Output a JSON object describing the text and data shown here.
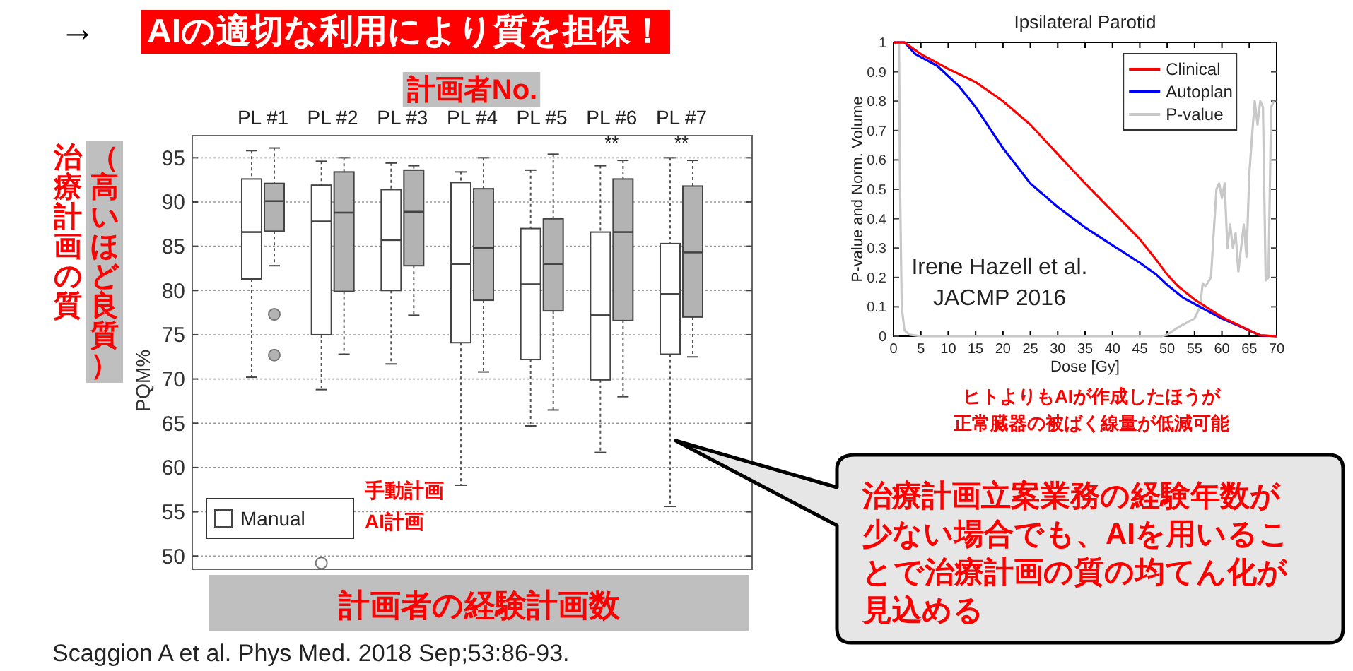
{
  "chart_data": [
    {
      "type": "box",
      "title": "AIの適切な利用により質を担保！",
      "categories": [
        "PL #1",
        "PL #2",
        "PL #3",
        "PL #4",
        "PL #5",
        "PL #6",
        "PL #7"
      ],
      "ylabel": "PQM%",
      "ylim": [
        48.5,
        97.5
      ],
      "yticks": [
        50,
        55,
        60,
        65,
        70,
        75,
        80,
        85,
        90,
        95
      ],
      "grid": "y",
      "legend": "bottom left",
      "series": [
        {
          "name": "Manual",
          "color": "#ffffff",
          "boxes": [
            {
              "low": 70.2,
              "q1": 81.3,
              "median": 86.6,
              "q3": 92.6,
              "high": 95.8
            },
            {
              "low": 68.8,
              "q1": 75.0,
              "median": 87.8,
              "q3": 91.9,
              "high": 94.6,
              "outliers": [
                49.2
              ]
            },
            {
              "low": 71.7,
              "q1": 80.0,
              "median": 85.7,
              "q3": 91.4,
              "high": 94.4
            },
            {
              "low": 58.0,
              "q1": 74.1,
              "median": 83.0,
              "q3": 92.2,
              "high": 93.4
            },
            {
              "low": 64.7,
              "q1": 72.2,
              "median": 80.7,
              "q3": 87.0,
              "high": 93.6
            },
            {
              "low": 61.7,
              "q1": 69.9,
              "median": 77.2,
              "q3": 86.6,
              "high": 94.1
            },
            {
              "low": 55.6,
              "q1": 72.8,
              "median": 79.6,
              "q3": 85.3,
              "high": 95.0
            }
          ]
        },
        {
          "color": "#b3b3b3",
          "boxes": [
            {
              "low": 82.8,
              "q1": 86.7,
              "median": 90.1,
              "q3": 92.1,
              "high": 96.1,
              "outliers": [
                77.3,
                72.7
              ]
            },
            {
              "low": 72.8,
              "q1": 79.9,
              "median": 88.8,
              "q3": 93.4,
              "high": 95.0
            },
            {
              "low": 77.2,
              "q1": 82.8,
              "median": 88.9,
              "q3": 93.6,
              "high": 94.1
            },
            {
              "low": 70.8,
              "q1": 78.9,
              "median": 84.8,
              "q3": 91.5,
              "high": 95.0
            },
            {
              "low": 66.5,
              "q1": 77.7,
              "median": 83.0,
              "q3": 88.1,
              "high": 95.4
            },
            {
              "low": 68.0,
              "q1": 76.6,
              "median": 86.6,
              "q3": 92.6,
              "high": 94.7
            },
            {
              "low": 72.5,
              "q1": 77.0,
              "median": 84.3,
              "q3": 91.8,
              "high": 94.7
            }
          ]
        }
      ],
      "annotations": [
        "→",
        "計画者No.",
        "治療計画の質",
        "（高いほど良質）",
        "**",
        "**",
        "手動計画",
        "AI計画",
        "計画者の経験計画数",
        "Scaggion A et  al. Phys Med. 2018 Sep;53:86-93.",
        "治療計画立案業務の経験年数が",
        "少ない場合でも、AIを用いるこ",
        "とで治療計画の質の均てん化が",
        "見込める"
      ]
    },
    {
      "type": "line",
      "title": "Ipsilateral Parotid",
      "xlabel": "Dose [Gy]",
      "ylabel": "P-value and Norm. Volume",
      "xlim": [
        0,
        70
      ],
      "xticks": [
        0,
        5,
        10,
        15,
        20,
        25,
        30,
        35,
        40,
        45,
        50,
        55,
        60,
        65,
        70
      ],
      "ylim": [
        0,
        1
      ],
      "yticks": [
        0,
        0.1,
        0.2,
        0.3,
        0.4,
        0.5,
        0.6,
        0.7,
        0.8,
        0.9,
        1
      ],
      "legend": "top",
      "series": [
        {
          "name": "Clinical",
          "color": "#ff0000",
          "x": [
            0,
            2,
            5,
            10,
            15,
            20,
            25,
            30,
            35,
            40,
            45,
            48,
            50,
            52,
            55,
            60,
            65,
            67,
            70
          ],
          "values": [
            1,
            1,
            0.96,
            0.91,
            0.865,
            0.8,
            0.72,
            0.62,
            0.52,
            0.425,
            0.33,
            0.26,
            0.21,
            0.17,
            0.125,
            0.065,
            0.02,
            0.003,
            0
          ]
        },
        {
          "name": "Autoplan",
          "color": "#0000ff",
          "x": [
            0,
            2,
            4,
            8,
            12,
            15,
            20,
            25,
            30,
            35,
            40,
            45,
            48,
            50,
            53,
            55,
            60,
            65,
            67,
            70
          ],
          "values": [
            1,
            1,
            0.96,
            0.92,
            0.85,
            0.78,
            0.64,
            0.52,
            0.44,
            0.37,
            0.31,
            0.25,
            0.21,
            0.175,
            0.13,
            0.11,
            0.06,
            0.02,
            0.003,
            0
          ]
        },
        {
          "name": "P-value",
          "color": "#c8c8c8",
          "x": [
            0,
            1,
            1.2,
            1.5,
            2,
            3,
            5,
            49,
            50,
            52,
            54,
            55,
            56,
            56.5,
            57,
            58,
            58.5,
            59,
            59.5,
            60,
            60.5,
            61,
            61.5,
            62,
            62.5,
            63,
            63.5,
            64,
            64.5,
            65,
            65.5,
            66,
            66.5,
            67,
            67.5,
            68,
            68.5,
            69,
            69.5
          ],
          "values": [
            1,
            1,
            0.5,
            0.1,
            0.02,
            0.005,
            0,
            0,
            0.005,
            0.03,
            0.05,
            0.06,
            0.1,
            0.18,
            0.17,
            0.2,
            0.35,
            0.5,
            0.52,
            0.47,
            0.52,
            0.3,
            0.38,
            0.3,
            0.35,
            0.22,
            0.3,
            0.38,
            0.27,
            0.55,
            0.68,
            0.8,
            0.72,
            0.8,
            0.78,
            0.19,
            0.2,
            0.78,
            0.8
          ]
        }
      ],
      "annotations": [
        "Irene Hazell et al.\nJACMP 2016",
        "ヒトよりもAIが作成したほうが",
        "正常臓器の被ばく線量が低減可能"
      ]
    }
  ]
}
